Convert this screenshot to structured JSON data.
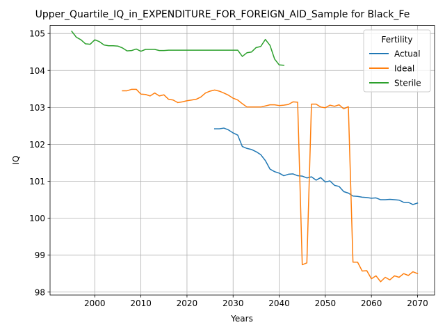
{
  "chart_data": {
    "type": "line",
    "title": "Upper_Quartile_IQ_in_EXPENDITURE_FOR_FOREIGN_AID_Sample for Black_Fe",
    "xlabel": "Years",
    "ylabel": "IQ",
    "xlim": [
      1990.3,
      2073.7
    ],
    "ylim": [
      97.92,
      105.22
    ],
    "xticks": [
      2000,
      2010,
      2020,
      2030,
      2040,
      2050,
      2060,
      2070
    ],
    "yticks": [
      98,
      99,
      100,
      101,
      102,
      103,
      104,
      105
    ],
    "grid": true,
    "legend": {
      "title": "Fertility",
      "position": "top-right"
    },
    "series": [
      {
        "name": "Actual",
        "color": "#1f77b4",
        "x": [
          2026,
          2027,
          2028,
          2029,
          2030,
          2031,
          2032,
          2033,
          2034,
          2035,
          2036,
          2037,
          2038,
          2039,
          2040,
          2041,
          2042,
          2043,
          2044,
          2045,
          2046,
          2047,
          2048,
          2049,
          2050,
          2051,
          2052,
          2053,
          2054,
          2055,
          2056,
          2057,
          2058,
          2059,
          2060,
          2061,
          2062,
          2063,
          2064,
          2065,
          2066,
          2067,
          2068,
          2069,
          2070
        ],
        "values": [
          102.42,
          102.42,
          102.44,
          102.39,
          102.31,
          102.25,
          101.94,
          101.89,
          101.86,
          101.8,
          101.72,
          101.56,
          101.33,
          101.26,
          101.22,
          101.15,
          101.19,
          101.2,
          101.15,
          101.14,
          101.09,
          101.12,
          101.03,
          101.1,
          100.98,
          101.01,
          100.89,
          100.86,
          100.72,
          100.68,
          100.6,
          100.59,
          100.57,
          100.56,
          100.54,
          100.55,
          100.5,
          100.5,
          100.51,
          100.5,
          100.49,
          100.43,
          100.43,
          100.37,
          100.41
        ]
      },
      {
        "name": "Ideal",
        "color": "#ff7f0e",
        "x": [
          2006,
          2007,
          2008,
          2009,
          2010,
          2011,
          2012,
          2013,
          2014,
          2015,
          2016,
          2017,
          2018,
          2019,
          2020,
          2021,
          2022,
          2023,
          2024,
          2025,
          2026,
          2027,
          2028,
          2029,
          2030,
          2031,
          2032,
          2033,
          2034,
          2035,
          2036,
          2037,
          2038,
          2039,
          2040,
          2041,
          2042,
          2043,
          2044,
          2045,
          2046,
          2047,
          2048,
          2049,
          2050,
          2051,
          2052,
          2053,
          2054,
          2055,
          2056,
          2057,
          2058,
          2059,
          2060,
          2061,
          2062,
          2063,
          2064,
          2065,
          2066,
          2067,
          2068,
          2069,
          2070
        ],
        "values": [
          103.45,
          103.45,
          103.49,
          103.49,
          103.36,
          103.35,
          103.31,
          103.39,
          103.31,
          103.34,
          103.22,
          103.2,
          103.13,
          103.15,
          103.18,
          103.2,
          103.22,
          103.28,
          103.39,
          103.44,
          103.47,
          103.44,
          103.39,
          103.33,
          103.25,
          103.2,
          103.1,
          103.01,
          103.01,
          103.01,
          103.01,
          103.04,
          103.07,
          103.07,
          103.05,
          103.06,
          103.08,
          103.15,
          103.14,
          98.74,
          98.79,
          103.09,
          103.09,
          103.01,
          102.99,
          103.06,
          103.03,
          103.07,
          102.96,
          103.02,
          98.81,
          98.81,
          98.57,
          98.58,
          98.36,
          98.44,
          98.28,
          98.4,
          98.33,
          98.44,
          98.4,
          98.5,
          98.45,
          98.55,
          98.5
        ]
      },
      {
        "name": "Sterile",
        "color": "#2ca02c",
        "x": [
          1995,
          1996,
          1997,
          1998,
          1999,
          2000,
          2001,
          2002,
          2003,
          2004,
          2005,
          2006,
          2007,
          2008,
          2009,
          2010,
          2011,
          2012,
          2013,
          2014,
          2015,
          2016,
          2017,
          2018,
          2019,
          2020,
          2021,
          2022,
          2023,
          2024,
          2025,
          2026,
          2027,
          2028,
          2029,
          2030,
          2031,
          2032,
          2033,
          2034,
          2035,
          2036,
          2037,
          2038,
          2039,
          2040,
          2041
        ],
        "values": [
          105.06,
          104.9,
          104.83,
          104.72,
          104.71,
          104.83,
          104.78,
          104.69,
          104.67,
          104.67,
          104.66,
          104.61,
          104.53,
          104.54,
          104.58,
          104.52,
          104.57,
          104.57,
          104.57,
          104.54,
          104.54,
          104.55,
          104.55,
          104.55,
          104.55,
          104.55,
          104.55,
          104.55,
          104.55,
          104.55,
          104.55,
          104.55,
          104.55,
          104.55,
          104.55,
          104.55,
          104.55,
          104.38,
          104.48,
          104.5,
          104.62,
          104.65,
          104.84,
          104.68,
          104.31,
          104.15,
          104.14
        ]
      }
    ]
  }
}
